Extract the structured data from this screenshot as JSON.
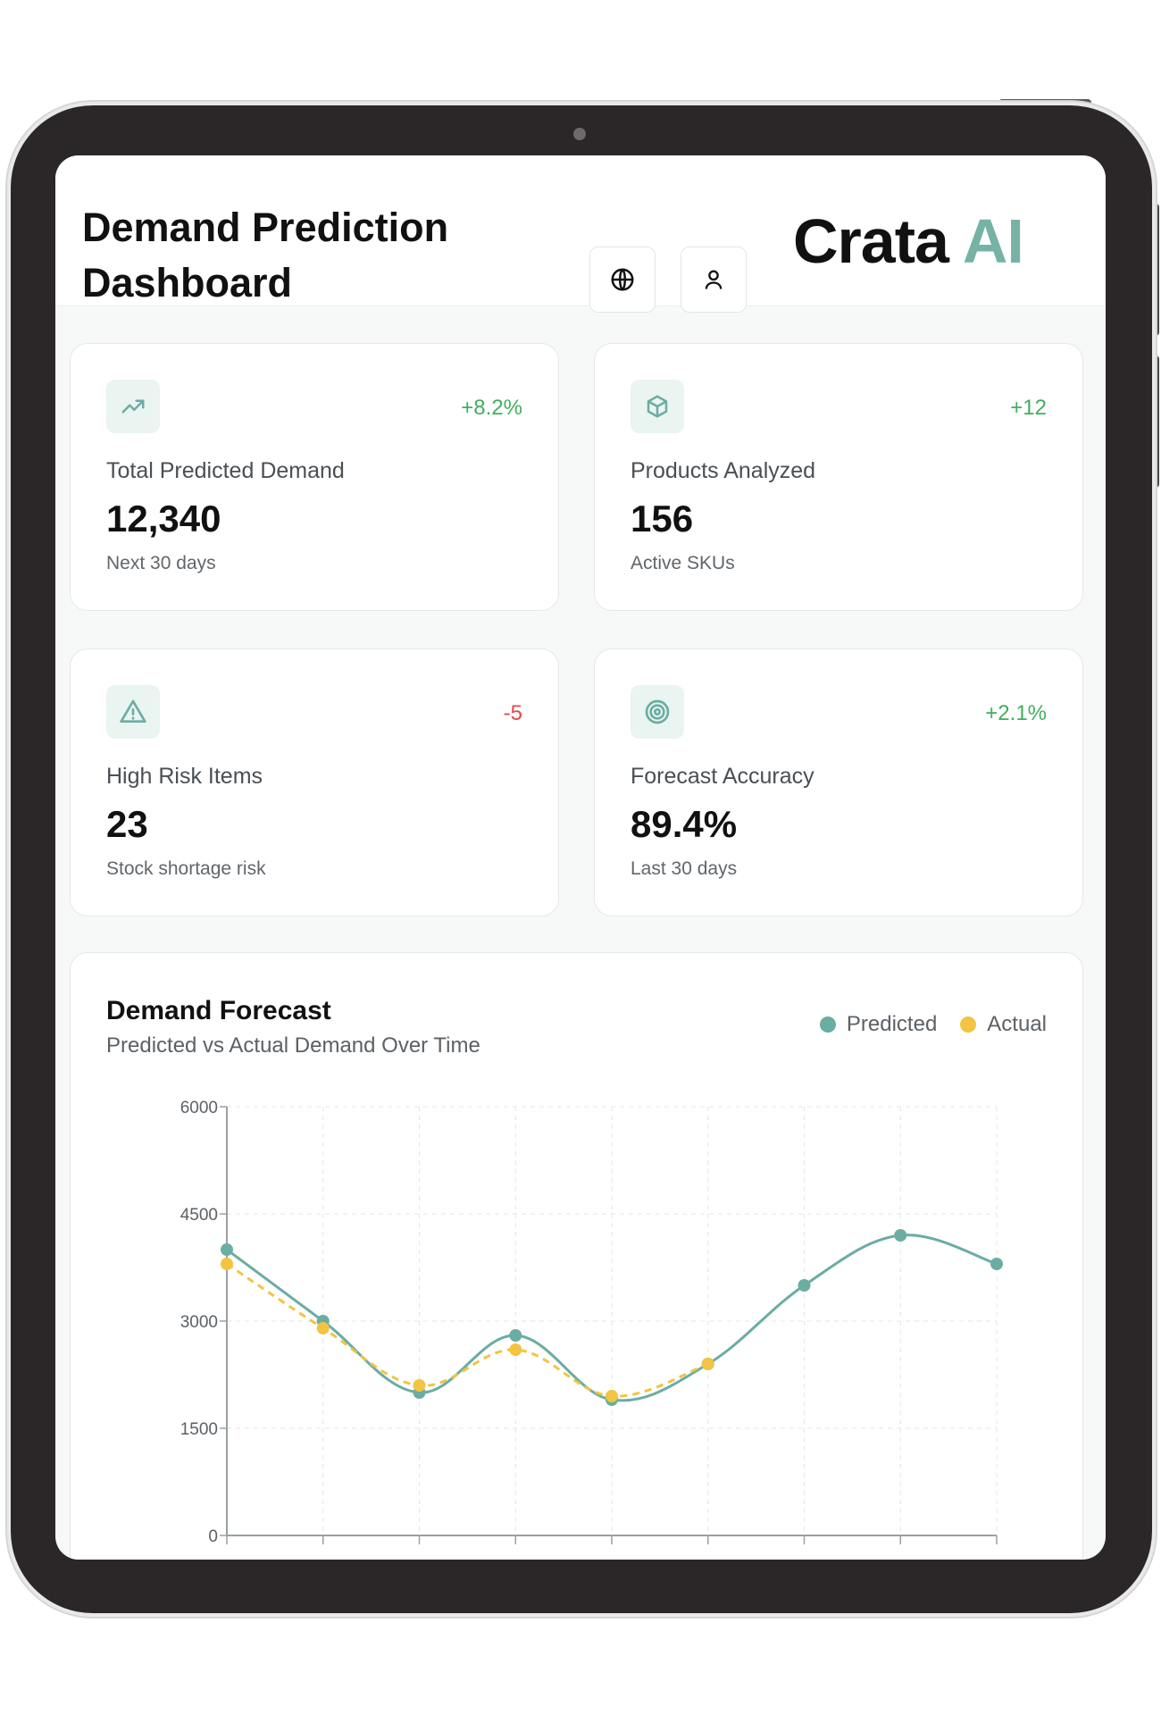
{
  "header": {
    "title": "Demand Prediction Dashboard",
    "logo_main": "Crata",
    "logo_accent": "AI",
    "logo_accent_color": "#76b3a6",
    "icons": [
      "globe-icon",
      "user-icon"
    ]
  },
  "stats": [
    {
      "icon": "trending-up-icon",
      "delta": "+8.2%",
      "delta_type": "positive",
      "label": "Total Predicted Demand",
      "value": "12,340",
      "sub": "Next 30 days"
    },
    {
      "icon": "box-icon",
      "delta": "+12",
      "delta_type": "positive",
      "label": "Products Analyzed",
      "value": "156",
      "sub": "Active SKUs"
    },
    {
      "icon": "alert-triangle-icon",
      "delta": "-5",
      "delta_type": "negative",
      "label": "High Risk Items",
      "value": "23",
      "sub": "Stock shortage risk"
    },
    {
      "icon": "target-icon",
      "delta": "+2.1%",
      "delta_type": "positive",
      "label": "Forecast Accuracy",
      "value": "89.4%",
      "sub": "Last 30 days"
    }
  ],
  "colors": {
    "positive": "#3fae5e",
    "negative": "#e5484d",
    "predicted": "#6aada3",
    "actual": "#f2c442"
  },
  "chart_data": {
    "type": "line",
    "title": "Demand Forecast",
    "subtitle": "Predicted vs Actual Demand Over Time",
    "x_count": 9,
    "ylim": [
      0,
      6000
    ],
    "yticks": [
      0,
      1500,
      3000,
      4500,
      6000
    ],
    "grid": true,
    "legend_position": "top-right",
    "series": [
      {
        "name": "Predicted",
        "color": "#6aada3",
        "style": "solid",
        "values": [
          4000,
          3000,
          2000,
          2800,
          1900,
          2400,
          3500,
          4200,
          3800
        ]
      },
      {
        "name": "Actual",
        "color": "#f2c442",
        "style": "dashed",
        "values": [
          3800,
          2900,
          2100,
          2600,
          1950,
          2400,
          null,
          null,
          null
        ]
      }
    ]
  }
}
